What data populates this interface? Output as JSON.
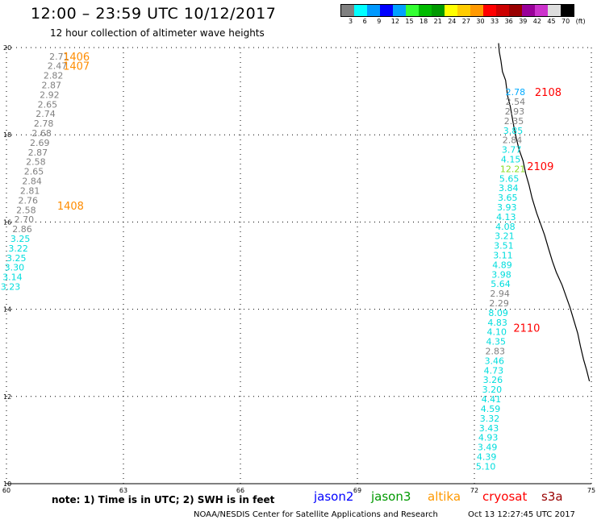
{
  "title": "12:00 – 23:59 UTC 10/12/2017",
  "subtitle": "12 hour collection of altimeter wave heights",
  "scale": {
    "colors": [
      "#808080",
      "#00ffff",
      "#0099ff",
      "#0000ff",
      "#00a0ff",
      "#33ff33",
      "#00bb00",
      "#009900",
      "#ffff00",
      "#ffcc00",
      "#ff9900",
      "#ff0000",
      "#cc0000",
      "#990000",
      "#990099",
      "#cc33cc",
      "#dddddd",
      "#000000"
    ],
    "labels": [
      "3",
      "6",
      "9",
      "12",
      "15",
      "18",
      "21",
      "24",
      "27",
      "30",
      "33",
      "36",
      "39",
      "42",
      "45",
      "70",
      "(ft)"
    ]
  },
  "axes": {
    "x": {
      "min": 60,
      "max": 75,
      "ticks": [
        "60",
        "63",
        "66",
        "69",
        "72",
        "75"
      ]
    },
    "y": {
      "min": 10,
      "max": 20,
      "ticks": [
        "10",
        "12",
        "14",
        "16",
        "18",
        "20"
      ]
    }
  },
  "tracks": [
    {
      "id": "1406",
      "label_color": "#ff8c00"
    },
    {
      "id": "1407",
      "label_color": "#ff8c00"
    },
    {
      "id": "1408",
      "label_color": "#ff8c00"
    },
    {
      "id": "2108",
      "label_color": "#ff0000"
    },
    {
      "id": "2109",
      "label_color": "#ff0000"
    },
    {
      "id": "2110",
      "label_color": "#ff0000"
    }
  ],
  "track_labels": [
    {
      "text": "1406",
      "lon": 61.45,
      "lat": 19.8,
      "color": "#ff8c00"
    },
    {
      "text": "1407",
      "lon": 61.45,
      "lat": 19.58,
      "color": "#ff8c00"
    },
    {
      "text": "1408",
      "lon": 61.3,
      "lat": 16.38,
      "color": "#ff8c00"
    },
    {
      "text": "2108",
      "lon": 73.55,
      "lat": 18.98,
      "color": "#ff0000"
    },
    {
      "text": "2109",
      "lon": 73.35,
      "lat": 17.28,
      "color": "#ff0000"
    },
    {
      "text": "2110",
      "lon": 73.0,
      "lat": 13.58,
      "color": "#ff0000"
    }
  ],
  "observations": [
    {
      "v": "2.71",
      "lon": 61.1,
      "lat": 19.8,
      "c": "#808080"
    },
    {
      "v": "2.47",
      "lon": 61.05,
      "lat": 19.58,
      "c": "#808080"
    },
    {
      "v": "2.82",
      "lon": 60.95,
      "lat": 19.36,
      "c": "#808080"
    },
    {
      "v": "2.87",
      "lon": 60.9,
      "lat": 19.14,
      "c": "#808080"
    },
    {
      "v": "2.92",
      "lon": 60.85,
      "lat": 18.92,
      "c": "#808080"
    },
    {
      "v": "2.65",
      "lon": 60.8,
      "lat": 18.7,
      "c": "#808080"
    },
    {
      "v": "2.74",
      "lon": 60.75,
      "lat": 18.48,
      "c": "#808080"
    },
    {
      "v": "2.78",
      "lon": 60.7,
      "lat": 18.26,
      "c": "#808080"
    },
    {
      "v": "2.68",
      "lon": 60.65,
      "lat": 18.04,
      "c": "#808080"
    },
    {
      "v": "2.69",
      "lon": 60.6,
      "lat": 17.82,
      "c": "#808080"
    },
    {
      "v": "2.87",
      "lon": 60.55,
      "lat": 17.6,
      "c": "#808080"
    },
    {
      "v": "2.58",
      "lon": 60.5,
      "lat": 17.38,
      "c": "#808080"
    },
    {
      "v": "2.65",
      "lon": 60.45,
      "lat": 17.16,
      "c": "#808080"
    },
    {
      "v": "2.84",
      "lon": 60.4,
      "lat": 16.94,
      "c": "#808080"
    },
    {
      "v": "2.81",
      "lon": 60.35,
      "lat": 16.72,
      "c": "#808080"
    },
    {
      "v": "2.76",
      "lon": 60.3,
      "lat": 16.5,
      "c": "#808080"
    },
    {
      "v": "2.58",
      "lon": 60.25,
      "lat": 16.28,
      "c": "#808080"
    },
    {
      "v": "2.70",
      "lon": 60.2,
      "lat": 16.06,
      "c": "#808080"
    },
    {
      "v": "2.86",
      "lon": 60.15,
      "lat": 15.84,
      "c": "#808080"
    },
    {
      "v": "3.25",
      "lon": 60.1,
      "lat": 15.62,
      "c": "#00dddd"
    },
    {
      "v": "3.22",
      "lon": 60.05,
      "lat": 15.4,
      "c": "#00dddd"
    },
    {
      "v": "3.25",
      "lon": 60.0,
      "lat": 15.18,
      "c": "#00dddd"
    },
    {
      "v": "3.30",
      "lon": 59.95,
      "lat": 14.96,
      "c": "#00dddd"
    },
    {
      "v": "3.14",
      "lon": 59.9,
      "lat": 14.74,
      "c": "#00dddd"
    },
    {
      "v": "3.23",
      "lon": 59.85,
      "lat": 14.52,
      "c": "#00dddd"
    },
    {
      "v": "2.78",
      "lon": 72.8,
      "lat": 18.98,
      "c": "#00aaff"
    },
    {
      "v": "2.54",
      "lon": 72.8,
      "lat": 18.76,
      "c": "#808080"
    },
    {
      "v": "2.93",
      "lon": 72.78,
      "lat": 18.54,
      "c": "#808080"
    },
    {
      "v": "2.35",
      "lon": 72.76,
      "lat": 18.32,
      "c": "#808080"
    },
    {
      "v": "3.85",
      "lon": 72.74,
      "lat": 18.1,
      "c": "#00dddd"
    },
    {
      "v": "2.84",
      "lon": 72.72,
      "lat": 17.88,
      "c": "#808080"
    },
    {
      "v": "3.77",
      "lon": 72.7,
      "lat": 17.66,
      "c": "#00dddd"
    },
    {
      "v": "4.15",
      "lon": 72.68,
      "lat": 17.44,
      "c": "#00dddd"
    },
    {
      "v": "12.21",
      "lon": 72.66,
      "lat": 17.22,
      "c": "#88dd22"
    },
    {
      "v": "5.65",
      "lon": 72.64,
      "lat": 17.0,
      "c": "#00dddd"
    },
    {
      "v": "3.84",
      "lon": 72.62,
      "lat": 16.78,
      "c": "#00dddd"
    },
    {
      "v": "3.65",
      "lon": 72.6,
      "lat": 16.56,
      "c": "#00dddd"
    },
    {
      "v": "3.93",
      "lon": 72.58,
      "lat": 16.34,
      "c": "#00dddd"
    },
    {
      "v": "4.13",
      "lon": 72.56,
      "lat": 16.12,
      "c": "#00dddd"
    },
    {
      "v": "4.08",
      "lon": 72.54,
      "lat": 15.9,
      "c": "#00dddd"
    },
    {
      "v": "3.21",
      "lon": 72.52,
      "lat": 15.68,
      "c": "#00dddd"
    },
    {
      "v": "3.51",
      "lon": 72.5,
      "lat": 15.46,
      "c": "#00dddd"
    },
    {
      "v": "3.11",
      "lon": 72.48,
      "lat": 15.24,
      "c": "#00dddd"
    },
    {
      "v": "4.89",
      "lon": 72.46,
      "lat": 15.02,
      "c": "#00dddd"
    },
    {
      "v": "3.98",
      "lon": 72.44,
      "lat": 14.8,
      "c": "#00dddd"
    },
    {
      "v": "5.64",
      "lon": 72.42,
      "lat": 14.58,
      "c": "#00dddd"
    },
    {
      "v": "2.94",
      "lon": 72.4,
      "lat": 14.36,
      "c": "#808080"
    },
    {
      "v": "2.29",
      "lon": 72.38,
      "lat": 14.14,
      "c": "#808080"
    },
    {
      "v": "8.09",
      "lon": 72.36,
      "lat": 13.92,
      "c": "#00dddd"
    },
    {
      "v": "4.83",
      "lon": 72.34,
      "lat": 13.7,
      "c": "#00dddd"
    },
    {
      "v": "4.10",
      "lon": 72.32,
      "lat": 13.48,
      "c": "#00dddd"
    },
    {
      "v": "4.35",
      "lon": 72.3,
      "lat": 13.26,
      "c": "#00dddd"
    },
    {
      "v": "2.83",
      "lon": 72.28,
      "lat": 13.04,
      "c": "#808080"
    },
    {
      "v": "3.46",
      "lon": 72.26,
      "lat": 12.82,
      "c": "#00dddd"
    },
    {
      "v": "4.73",
      "lon": 72.24,
      "lat": 12.6,
      "c": "#00dddd"
    },
    {
      "v": "3.26",
      "lon": 72.22,
      "lat": 12.38,
      "c": "#00dddd"
    },
    {
      "v": "3.20",
      "lon": 72.2,
      "lat": 12.16,
      "c": "#00dddd"
    },
    {
      "v": "4.41",
      "lon": 72.18,
      "lat": 11.94,
      "c": "#00dddd"
    },
    {
      "v": "4.59",
      "lon": 72.16,
      "lat": 11.72,
      "c": "#00dddd"
    },
    {
      "v": "3.32",
      "lon": 72.14,
      "lat": 11.5,
      "c": "#00dddd"
    },
    {
      "v": "3.43",
      "lon": 72.12,
      "lat": 11.28,
      "c": "#00dddd"
    },
    {
      "v": "4.93",
      "lon": 72.1,
      "lat": 11.06,
      "c": "#00dddd"
    },
    {
      "v": "3.49",
      "lon": 72.08,
      "lat": 10.84,
      "c": "#00dddd"
    },
    {
      "v": "4.39",
      "lon": 72.06,
      "lat": 10.62,
      "c": "#00dddd"
    },
    {
      "v": "5.10",
      "lon": 72.04,
      "lat": 10.4,
      "c": "#00dddd"
    }
  ],
  "coastline": [
    [
      72.62,
      20.1
    ],
    [
      72.64,
      19.9
    ],
    [
      72.68,
      19.7
    ],
    [
      72.72,
      19.45
    ],
    [
      72.8,
      19.25
    ],
    [
      72.83,
      19.05
    ],
    [
      72.85,
      18.9
    ],
    [
      72.92,
      18.65
    ],
    [
      72.97,
      18.4
    ],
    [
      73.02,
      18.15
    ],
    [
      73.08,
      17.9
    ],
    [
      73.15,
      17.65
    ],
    [
      73.25,
      17.4
    ],
    [
      73.32,
      17.1
    ],
    [
      73.4,
      16.85
    ],
    [
      73.48,
      16.55
    ],
    [
      73.6,
      16.2
    ],
    [
      73.7,
      15.95
    ],
    [
      73.8,
      15.7
    ],
    [
      73.9,
      15.4
    ],
    [
      74.0,
      15.1
    ],
    [
      74.1,
      14.85
    ],
    [
      74.25,
      14.55
    ],
    [
      74.35,
      14.3
    ],
    [
      74.45,
      14.05
    ],
    [
      74.55,
      13.75
    ],
    [
      74.65,
      13.45
    ],
    [
      74.72,
      13.15
    ],
    [
      74.8,
      12.85
    ],
    [
      74.88,
      12.6
    ],
    [
      74.95,
      12.35
    ]
  ],
  "note": "note: 1) Time is in UTC; 2) SWH is in feet",
  "satellites": [
    {
      "name": "jason2",
      "color": "#0000ff"
    },
    {
      "name": "jason3",
      "color": "#009900"
    },
    {
      "name": "altika",
      "color": "#ff9900"
    },
    {
      "name": "cryosat",
      "color": "#ff0000"
    },
    {
      "name": "s3a",
      "color": "#990000"
    }
  ],
  "footer": {
    "source": "NOAA/NESDIS Center for Satellite Applications and Research",
    "timestamp": "Oct 13 12:27:45 UTC 2017"
  }
}
